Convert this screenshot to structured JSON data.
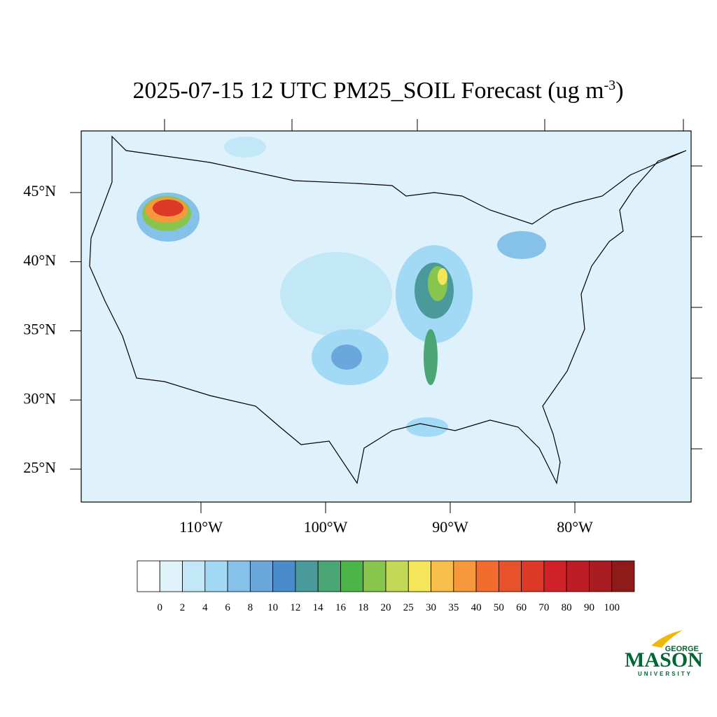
{
  "map": {
    "title": "2025-07-15 12 UTC PM25_SOIL Forecast (ug m",
    "title_superscript": "-3",
    "title_end": ")",
    "lat_ticks": [
      {
        "value": 45,
        "label": "45°N"
      },
      {
        "value": 40,
        "label": "40°N"
      },
      {
        "value": 35,
        "label": "35°N"
      },
      {
        "value": 30,
        "label": "30°N"
      },
      {
        "value": 25,
        "label": "25°N"
      }
    ],
    "lon_ticks": [
      {
        "value": -110,
        "label": "110°W"
      },
      {
        "value": -100,
        "label": "100°W"
      },
      {
        "value": -90,
        "label": "90°W"
      },
      {
        "value": -80,
        "label": "80°W"
      }
    ],
    "colorbar": {
      "levels": [
        0,
        2,
        4,
        6,
        8,
        10,
        12,
        14,
        16,
        18,
        20,
        25,
        30,
        35,
        40,
        50,
        60,
        70,
        80,
        90,
        100
      ],
      "colors": [
        "#ffffff",
        "#e0f3fb",
        "#c2e8f8",
        "#a2daf5",
        "#85c1e8",
        "#6aa8dc",
        "#4a8ccb",
        "#4a9a9c",
        "#4aa674",
        "#4bb548",
        "#88c54c",
        "#c4d857",
        "#f5e55a",
        "#f8be4c",
        "#f7983c",
        "#f26d2d",
        "#e8522b",
        "#dc3a27",
        "#d02129",
        "#bd1d25",
        "#a81c22",
        "#8e1a1a"
      ]
    },
    "logo": {
      "top": "GEORGE",
      "main": "MASON",
      "bottom": "UNIVERSITY"
    }
  }
}
